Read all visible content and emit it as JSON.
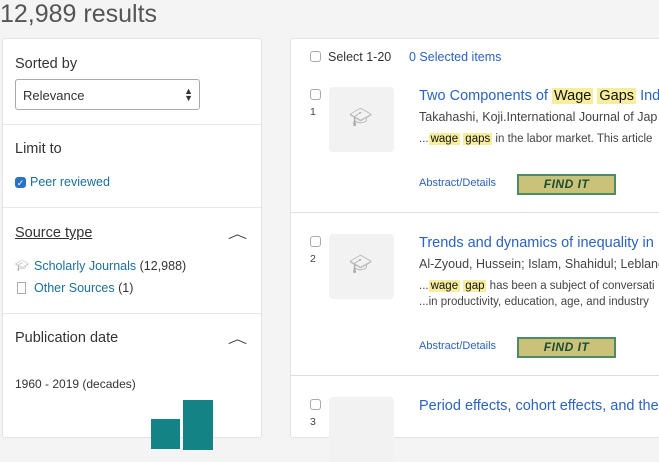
{
  "header": {
    "results_count": "12,989 results"
  },
  "sidebar": {
    "sort": {
      "label": "Sorted by",
      "value": "Relevance"
    },
    "limit": {
      "label": "Limit to",
      "peer_reviewed": "Peer reviewed",
      "peer_reviewed_checked": true
    },
    "source_type": {
      "label": "Source type",
      "items": [
        {
          "label": "Scholarly Journals",
          "count": "(12,988)",
          "icon": "graduation-cap-icon"
        },
        {
          "label": "Other Sources",
          "count": "(1)",
          "icon": "document-icon"
        }
      ]
    },
    "publication_date": {
      "label": "Publication date",
      "range": "1960 - 2019 (decades)"
    }
  },
  "results": {
    "select_label": "Select 1-20",
    "selected_items": "0 Selected items",
    "abstract_label": "Abstract/Details",
    "find_it_label": "FIND IT",
    "items": [
      {
        "num": "1",
        "title_pre": "Two Components of ",
        "hl1": "Wage",
        "hl2": "Gaps",
        "title_post": " Indu",
        "authors": "Takahashi, Koji.International Journal of Jap",
        "s_hl1": "wage",
        "s_hl2": "gaps",
        "snippet_post": " in the labor market. This article",
        "snippet2": ""
      },
      {
        "num": "2",
        "title_pre": "Trends and dynamics of inequality in",
        "authors": "Al-Zyoud, Hussein; Islam, Shahidul; Leblanc",
        "s_hl1": "wage",
        "s_hl2": "gap",
        "snippet_post": " has been a subject of conversati",
        "snippet2": "...in productivity, education, age, and industry"
      },
      {
        "num": "3",
        "title_pre": "Period effects, cohort effects, and the"
      }
    ]
  },
  "colors": {
    "accent": "#2a63c1",
    "bar": "#138385",
    "highlight": "#f6ee9c",
    "find_it": "#cbc27a"
  }
}
